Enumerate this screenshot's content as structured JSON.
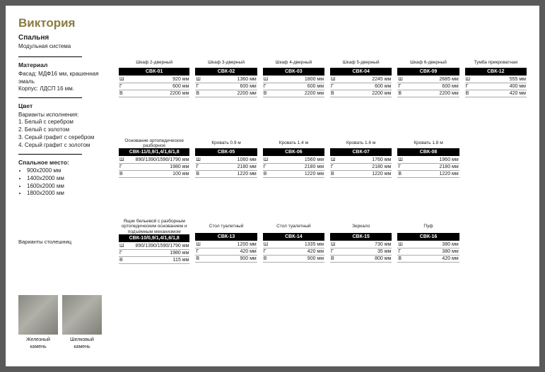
{
  "colors": {
    "accent": "#8a7b3f",
    "bar_bg": "#000000",
    "bar_fg": "#ffffff",
    "page_bg": "#ffffff",
    "outer_bg": "#5a5a5a"
  },
  "sidebar": {
    "title": "Виктория",
    "subtitle1": "Спальня",
    "subtitle2": "Модульная система",
    "material_title": "Материал",
    "material_text": "Фасад: МДФ16 мм, крашенная эмаль\nКорпус: ЛДСП 16 мм.",
    "color_title": "Цвет",
    "color_sub": "Варианты исполнения:",
    "colors": [
      "1. Белый с серебром",
      "2. Белый с золотом",
      "3. Серый графит с серебром",
      "4. Серый графит с золотом"
    ],
    "bedsize_title": "Спальное место:",
    "bedsizes": [
      "900х2000 мм",
      "1400х2000 мм",
      "1600х2000 мм",
      "1800х2000 мм"
    ],
    "swatch_caption": "Варианты столешниц",
    "swatches": [
      {
        "label": "Железный камень"
      },
      {
        "label": "Шелковый камень"
      }
    ]
  },
  "items": [
    {
      "row": 1,
      "name": "Шкаф 2-дверный",
      "code": "СВК-01",
      "w": "920 мм",
      "d": "600 мм",
      "h": "2200 мм",
      "icon": "wardrobe2"
    },
    {
      "row": 1,
      "name": "Шкаф 3-дверный",
      "code": "СВК-02",
      "w": "1360 мм",
      "d": "600 мм",
      "h": "2200 мм",
      "icon": "wardrobe3"
    },
    {
      "row": 1,
      "name": "Шкаф 4-дверный",
      "code": "СВК-03",
      "w": "1800 мм",
      "d": "600 мм",
      "h": "2200 мм",
      "icon": "wardrobe4"
    },
    {
      "row": 1,
      "name": "Шкаф 5-дверный",
      "code": "СВК-04",
      "w": "2245 мм",
      "d": "600 мм",
      "h": "2200 мм",
      "icon": "wardrobe5"
    },
    {
      "row": 1,
      "name": "Шкаф 6-дверный",
      "code": "СВК-09",
      "w": "2685 мм",
      "d": "600 мм",
      "h": "2200 мм",
      "icon": "wardrobe6"
    },
    {
      "row": 1,
      "name": "Тумба прикроватная",
      "code": "СВК-12",
      "w": "555 мм",
      "d": "400 мм",
      "h": "420 мм",
      "icon": "nightstand"
    },
    {
      "row": 2,
      "name": "Основание ортопедическое разборное",
      "code": "СВК-11/0,9/1,4/1,6/1,8",
      "w": "890/1390/1590/1790 мм",
      "d": "1980 мм",
      "h": "100 мм",
      "icon": "slats"
    },
    {
      "row": 2,
      "name": "Кровать 0.9 м",
      "code": "СВК-05",
      "w": "1060 мм",
      "d": "2180 мм",
      "h": "1220 мм",
      "icon": "bed"
    },
    {
      "row": 2,
      "name": "Кровать 1.4 м",
      "code": "СВК-06",
      "w": "1560 мм",
      "d": "2180 мм",
      "h": "1220 мм",
      "icon": "bed"
    },
    {
      "row": 2,
      "name": "Кровать 1.6 м",
      "code": "СВК-07",
      "w": "1760 мм",
      "d": "2180 мм",
      "h": "1220 мм",
      "icon": "bed"
    },
    {
      "row": 2,
      "name": "Кровать 1.8 м",
      "code": "СВК-08",
      "w": "1960 мм",
      "d": "2180 мм",
      "h": "1220 мм",
      "icon": "bed"
    },
    {
      "row": 3,
      "name": "Ящик бельевой с разборным ортопедическим основанием и подъёмным механизмом",
      "code": "СВК-10/0,9/1,4/1,6/1,8",
      "w": "890/1390/1590/1790 мм",
      "d": "1980 мм",
      "h": "115 мм",
      "icon": "drawerbox"
    },
    {
      "row": 3,
      "name": "Стол туалетный",
      "code": "СВК-13",
      "w": "1200 мм",
      "d": "420 мм",
      "h": "900 мм",
      "icon": "dresser1"
    },
    {
      "row": 3,
      "name": "Стол туалетный",
      "code": "СВК-14",
      "w": "1335 мм",
      "d": "420 мм",
      "h": "900 мм",
      "icon": "dresser2"
    },
    {
      "row": 3,
      "name": "Зеркало",
      "code": "СВК-15",
      "w": "730 мм",
      "d": "35 мм",
      "h": "800 мм",
      "icon": "mirror"
    },
    {
      "row": 3,
      "name": "Пуф",
      "code": "СВК-16",
      "w": "380 мм",
      "d": "380 мм",
      "h": "420 мм",
      "icon": "pouf"
    }
  ],
  "dim_labels": {
    "w": "Ш",
    "d": "Г",
    "h": "В"
  }
}
